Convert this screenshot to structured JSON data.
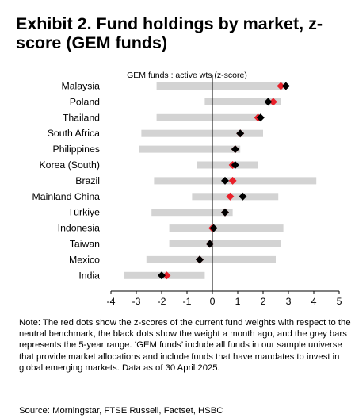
{
  "title": "Exhibit 2. Fund holdings by market, z-score (GEM funds)",
  "note": "Note: The red dots show the z-scores of the current fund weights with respect to the neutral benchmark, the black dots show the weight a month ago, and the grey bars represents the 5-year range. ‘GEM funds’ include all funds in our sample universe that provide market allocations and include funds that have mandates to invest in global emerging markets. Data as of 30 April 2025.",
  "source": "Source: Morningstar, FTSE Russell, Factset, HSBC",
  "colors": {
    "range_bar": "#d3d3d3",
    "current": "#e8202a",
    "month_ago": "#000000"
  },
  "chart_data": {
    "type": "range_dot",
    "subtitle": "GEM funds : active wts (z-score)",
    "xlim": [
      -4,
      5
    ],
    "xticks": [
      -4,
      -3,
      -2,
      -1,
      0,
      1,
      2,
      3,
      4,
      5
    ],
    "categories": [
      "Malaysia",
      "Poland",
      "Thailand",
      "South Africa",
      "Philippines",
      "Korea (South)",
      "Brazil",
      "Mainland China",
      "Türkiye",
      "Indonesia",
      "Taiwan",
      "Mexico",
      "India"
    ],
    "series": [
      {
        "name": "5-year range",
        "kind": "range",
        "values": [
          [
            -2.2,
            2.8
          ],
          [
            -0.3,
            2.7
          ],
          [
            -2.2,
            1.9
          ],
          [
            -2.8,
            2.0
          ],
          [
            -2.9,
            1.1
          ],
          [
            -0.6,
            1.8
          ],
          [
            -2.3,
            4.1
          ],
          [
            -0.8,
            2.6
          ],
          [
            -2.4,
            0.8
          ],
          [
            -1.7,
            2.8
          ],
          [
            -1.7,
            2.7
          ],
          [
            -2.6,
            2.5
          ],
          [
            -3.5,
            -0.3
          ]
        ]
      },
      {
        "name": "Current",
        "kind": "point",
        "values": [
          2.7,
          2.4,
          1.8,
          1.1,
          0.9,
          0.8,
          0.8,
          0.7,
          0.5,
          0.0,
          -0.1,
          -0.5,
          -1.8
        ]
      },
      {
        "name": "Month ago",
        "kind": "point",
        "values": [
          2.9,
          2.2,
          1.9,
          1.1,
          0.9,
          0.9,
          0.5,
          1.2,
          0.5,
          0.05,
          -0.1,
          -0.5,
          -2.0
        ]
      }
    ]
  }
}
